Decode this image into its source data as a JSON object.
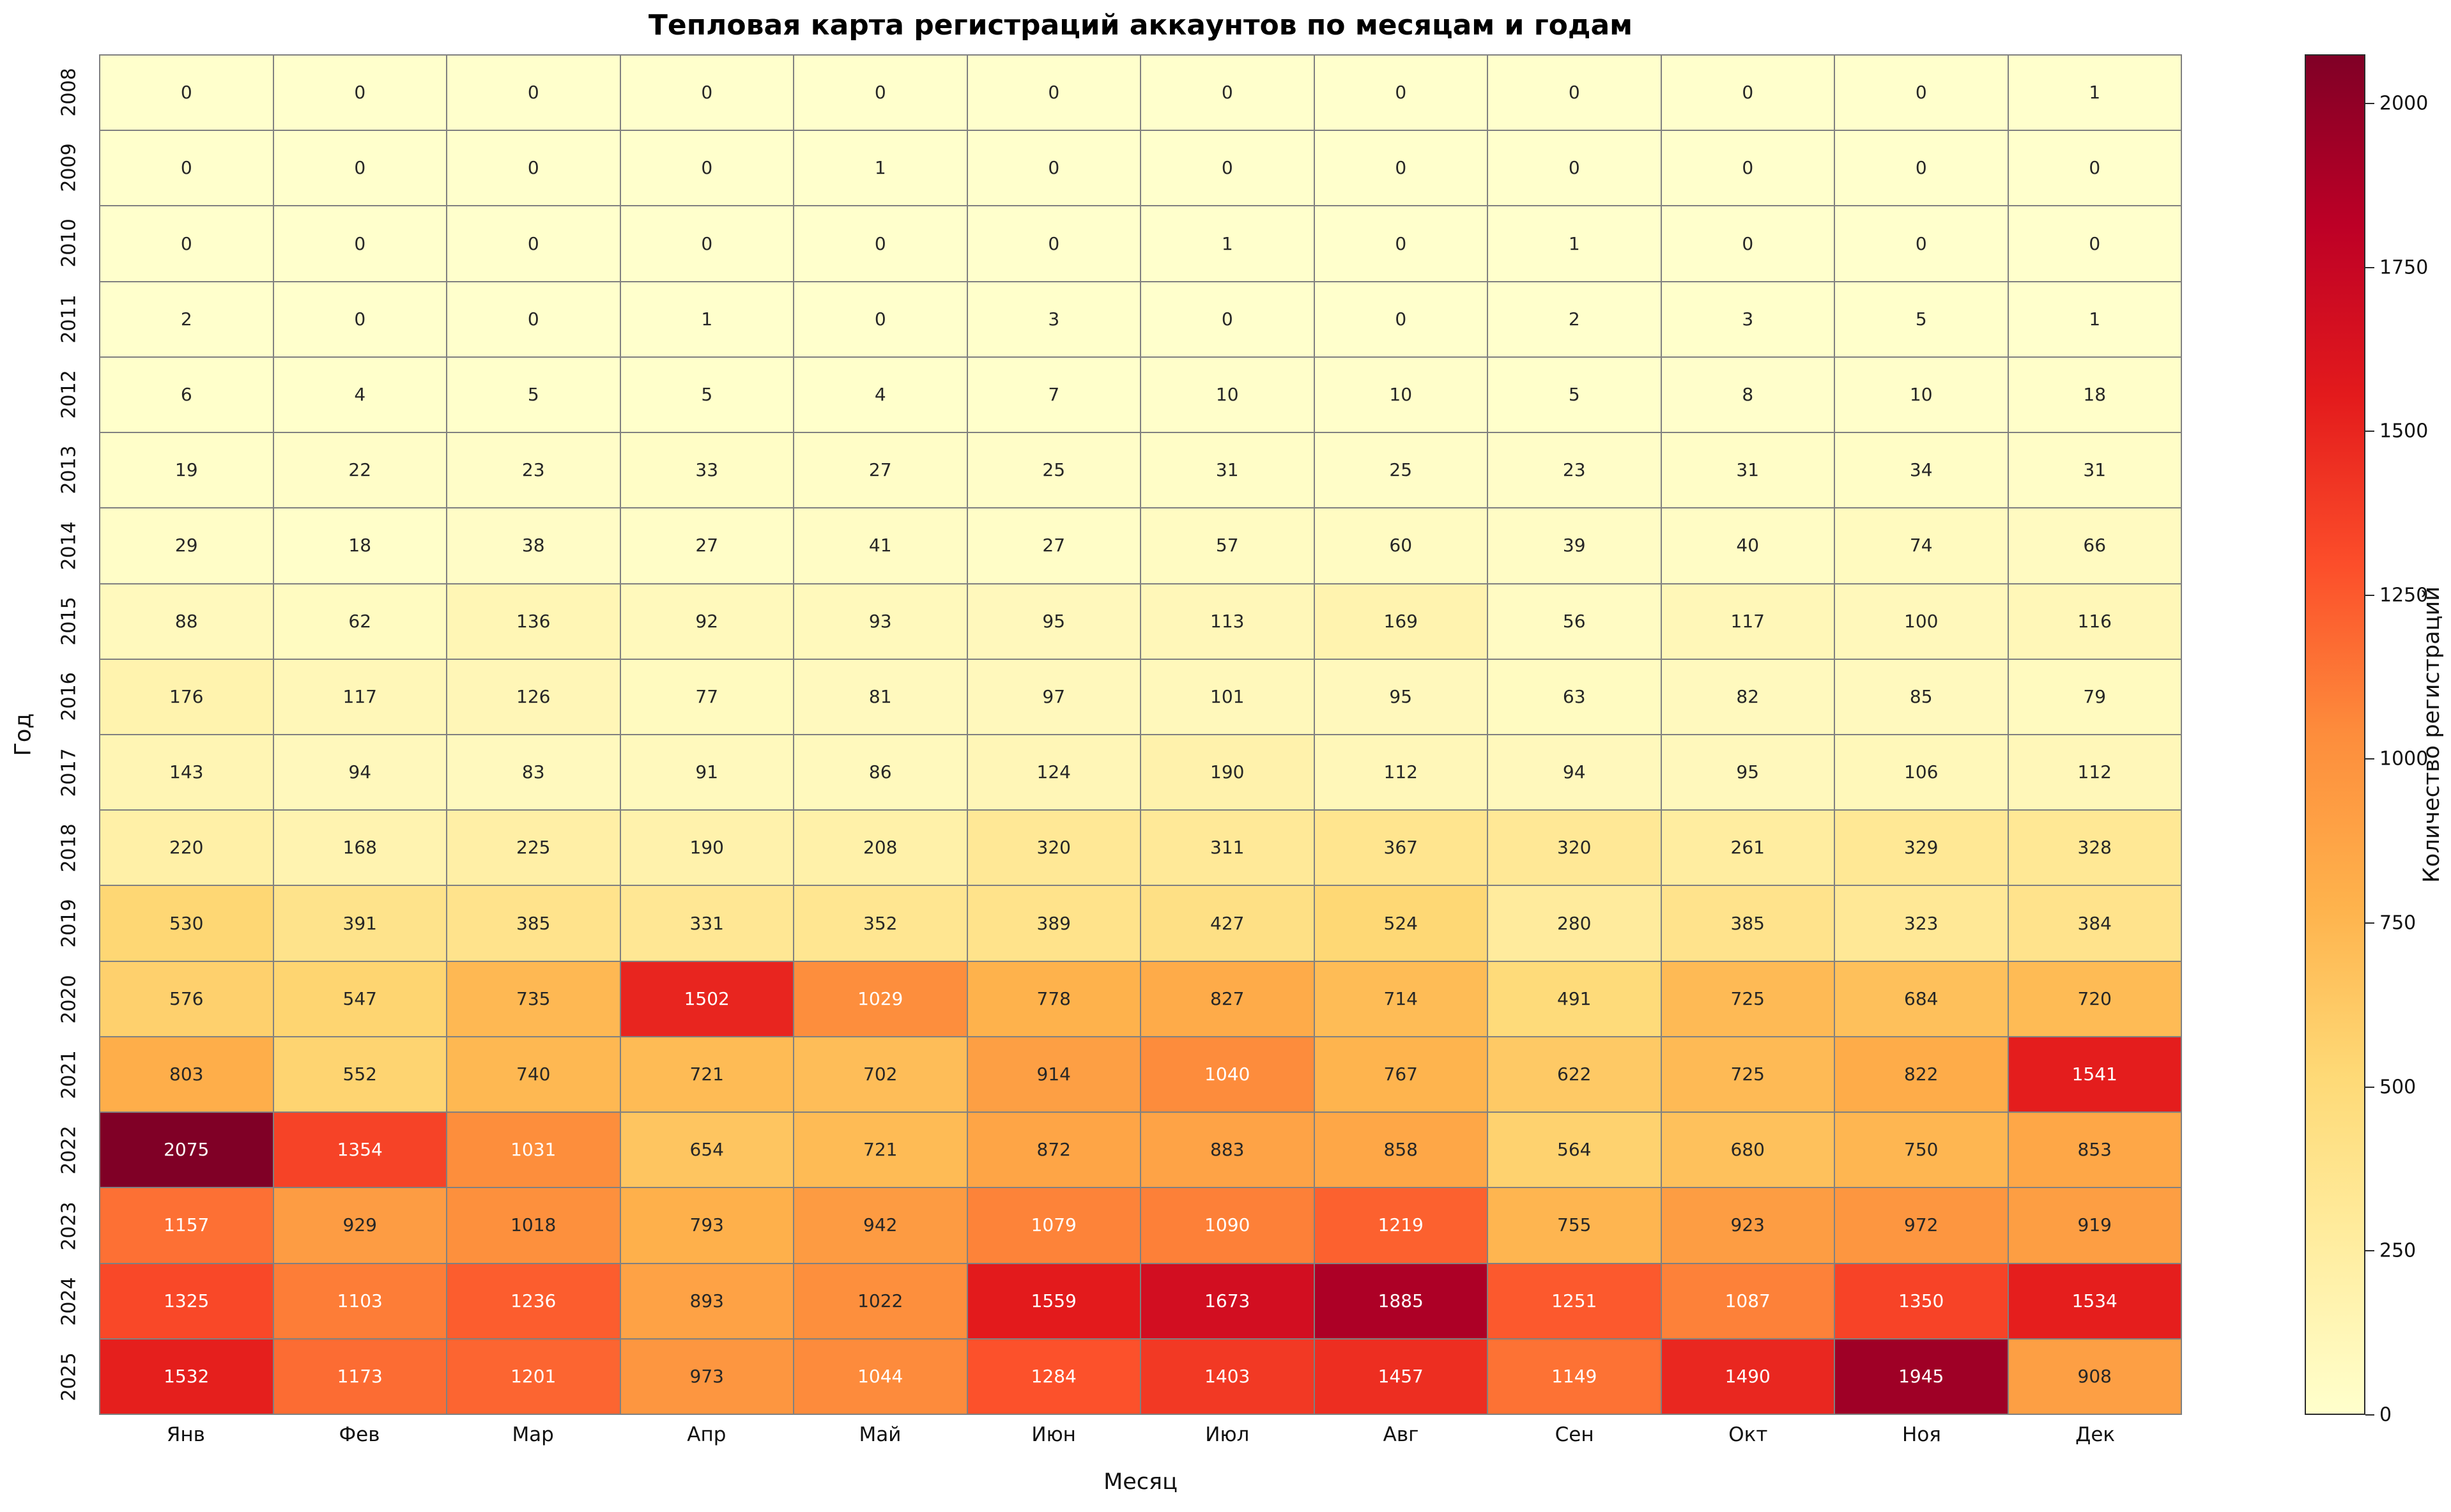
{
  "title": "Тепловая карта регистраций аккаунтов по месяцам и годам",
  "chart_data": {
    "type": "heatmap",
    "title": "Тепловая карта регистраций аккаунтов по месяцам и годам",
    "xlabel": "Месяц",
    "ylabel": "Год",
    "colorbar_label": "Количество регистраций",
    "colorbar_ticks": [
      0,
      250,
      500,
      750,
      1000,
      1250,
      1500,
      1750,
      2000
    ],
    "vmin": 0,
    "vmax": 2075,
    "colormap": "YlOrRd",
    "colormap_stops": [
      "#ffffcc",
      "#ffeda0",
      "#fed976",
      "#feb24c",
      "#fd8d3c",
      "#fc4e2a",
      "#e31a1c",
      "#bd0026",
      "#800026"
    ],
    "grid_line_color": "#808080",
    "annotation_dark_color": "#262626",
    "annotation_light_color": "#ffffff",
    "columns": [
      "Янв",
      "Фев",
      "Мар",
      "Апр",
      "Май",
      "Июн",
      "Июл",
      "Авг",
      "Сен",
      "Окт",
      "Ноя",
      "Дек"
    ],
    "rows": [
      "2008",
      "2009",
      "2010",
      "2011",
      "2012",
      "2013",
      "2014",
      "2015",
      "2016",
      "2017",
      "2018",
      "2019",
      "2020",
      "2021",
      "2022",
      "2023",
      "2024",
      "2025"
    ],
    "values": [
      [
        0,
        0,
        0,
        0,
        0,
        0,
        0,
        0,
        0,
        0,
        0,
        1
      ],
      [
        0,
        0,
        0,
        0,
        1,
        0,
        0,
        0,
        0,
        0,
        0,
        0
      ],
      [
        0,
        0,
        0,
        0,
        0,
        0,
        1,
        0,
        1,
        0,
        0,
        0
      ],
      [
        2,
        0,
        0,
        1,
        0,
        3,
        0,
        0,
        2,
        3,
        5,
        1
      ],
      [
        6,
        4,
        5,
        5,
        4,
        7,
        10,
        10,
        5,
        8,
        10,
        18
      ],
      [
        19,
        22,
        23,
        33,
        27,
        25,
        31,
        25,
        23,
        31,
        34,
        31
      ],
      [
        29,
        18,
        38,
        27,
        41,
        27,
        57,
        60,
        39,
        40,
        74,
        66
      ],
      [
        88,
        62,
        136,
        92,
        93,
        95,
        113,
        169,
        56,
        117,
        100,
        116
      ],
      [
        176,
        117,
        126,
        77,
        81,
        97,
        101,
        95,
        63,
        82,
        85,
        79
      ],
      [
        143,
        94,
        83,
        91,
        86,
        124,
        190,
        112,
        94,
        95,
        106,
        112
      ],
      [
        220,
        168,
        225,
        190,
        208,
        320,
        311,
        367,
        320,
        261,
        329,
        328
      ],
      [
        530,
        391,
        385,
        331,
        352,
        389,
        427,
        524,
        280,
        385,
        323,
        384
      ],
      [
        576,
        547,
        735,
        1502,
        1029,
        778,
        827,
        714,
        491,
        725,
        684,
        720
      ],
      [
        803,
        552,
        740,
        721,
        702,
        914,
        1040,
        767,
        622,
        725,
        822,
        1541
      ],
      [
        2075,
        1354,
        1031,
        654,
        721,
        872,
        883,
        858,
        564,
        680,
        750,
        853
      ],
      [
        1157,
        929,
        1018,
        793,
        942,
        1079,
        1090,
        1219,
        755,
        923,
        972,
        919
      ],
      [
        1325,
        1103,
        1236,
        893,
        1022,
        1559,
        1673,
        1885,
        1251,
        1087,
        1350,
        1534
      ],
      [
        1532,
        1173,
        1201,
        973,
        1044,
        1284,
        1403,
        1457,
        1149,
        1490,
        1945,
        908
      ]
    ]
  }
}
